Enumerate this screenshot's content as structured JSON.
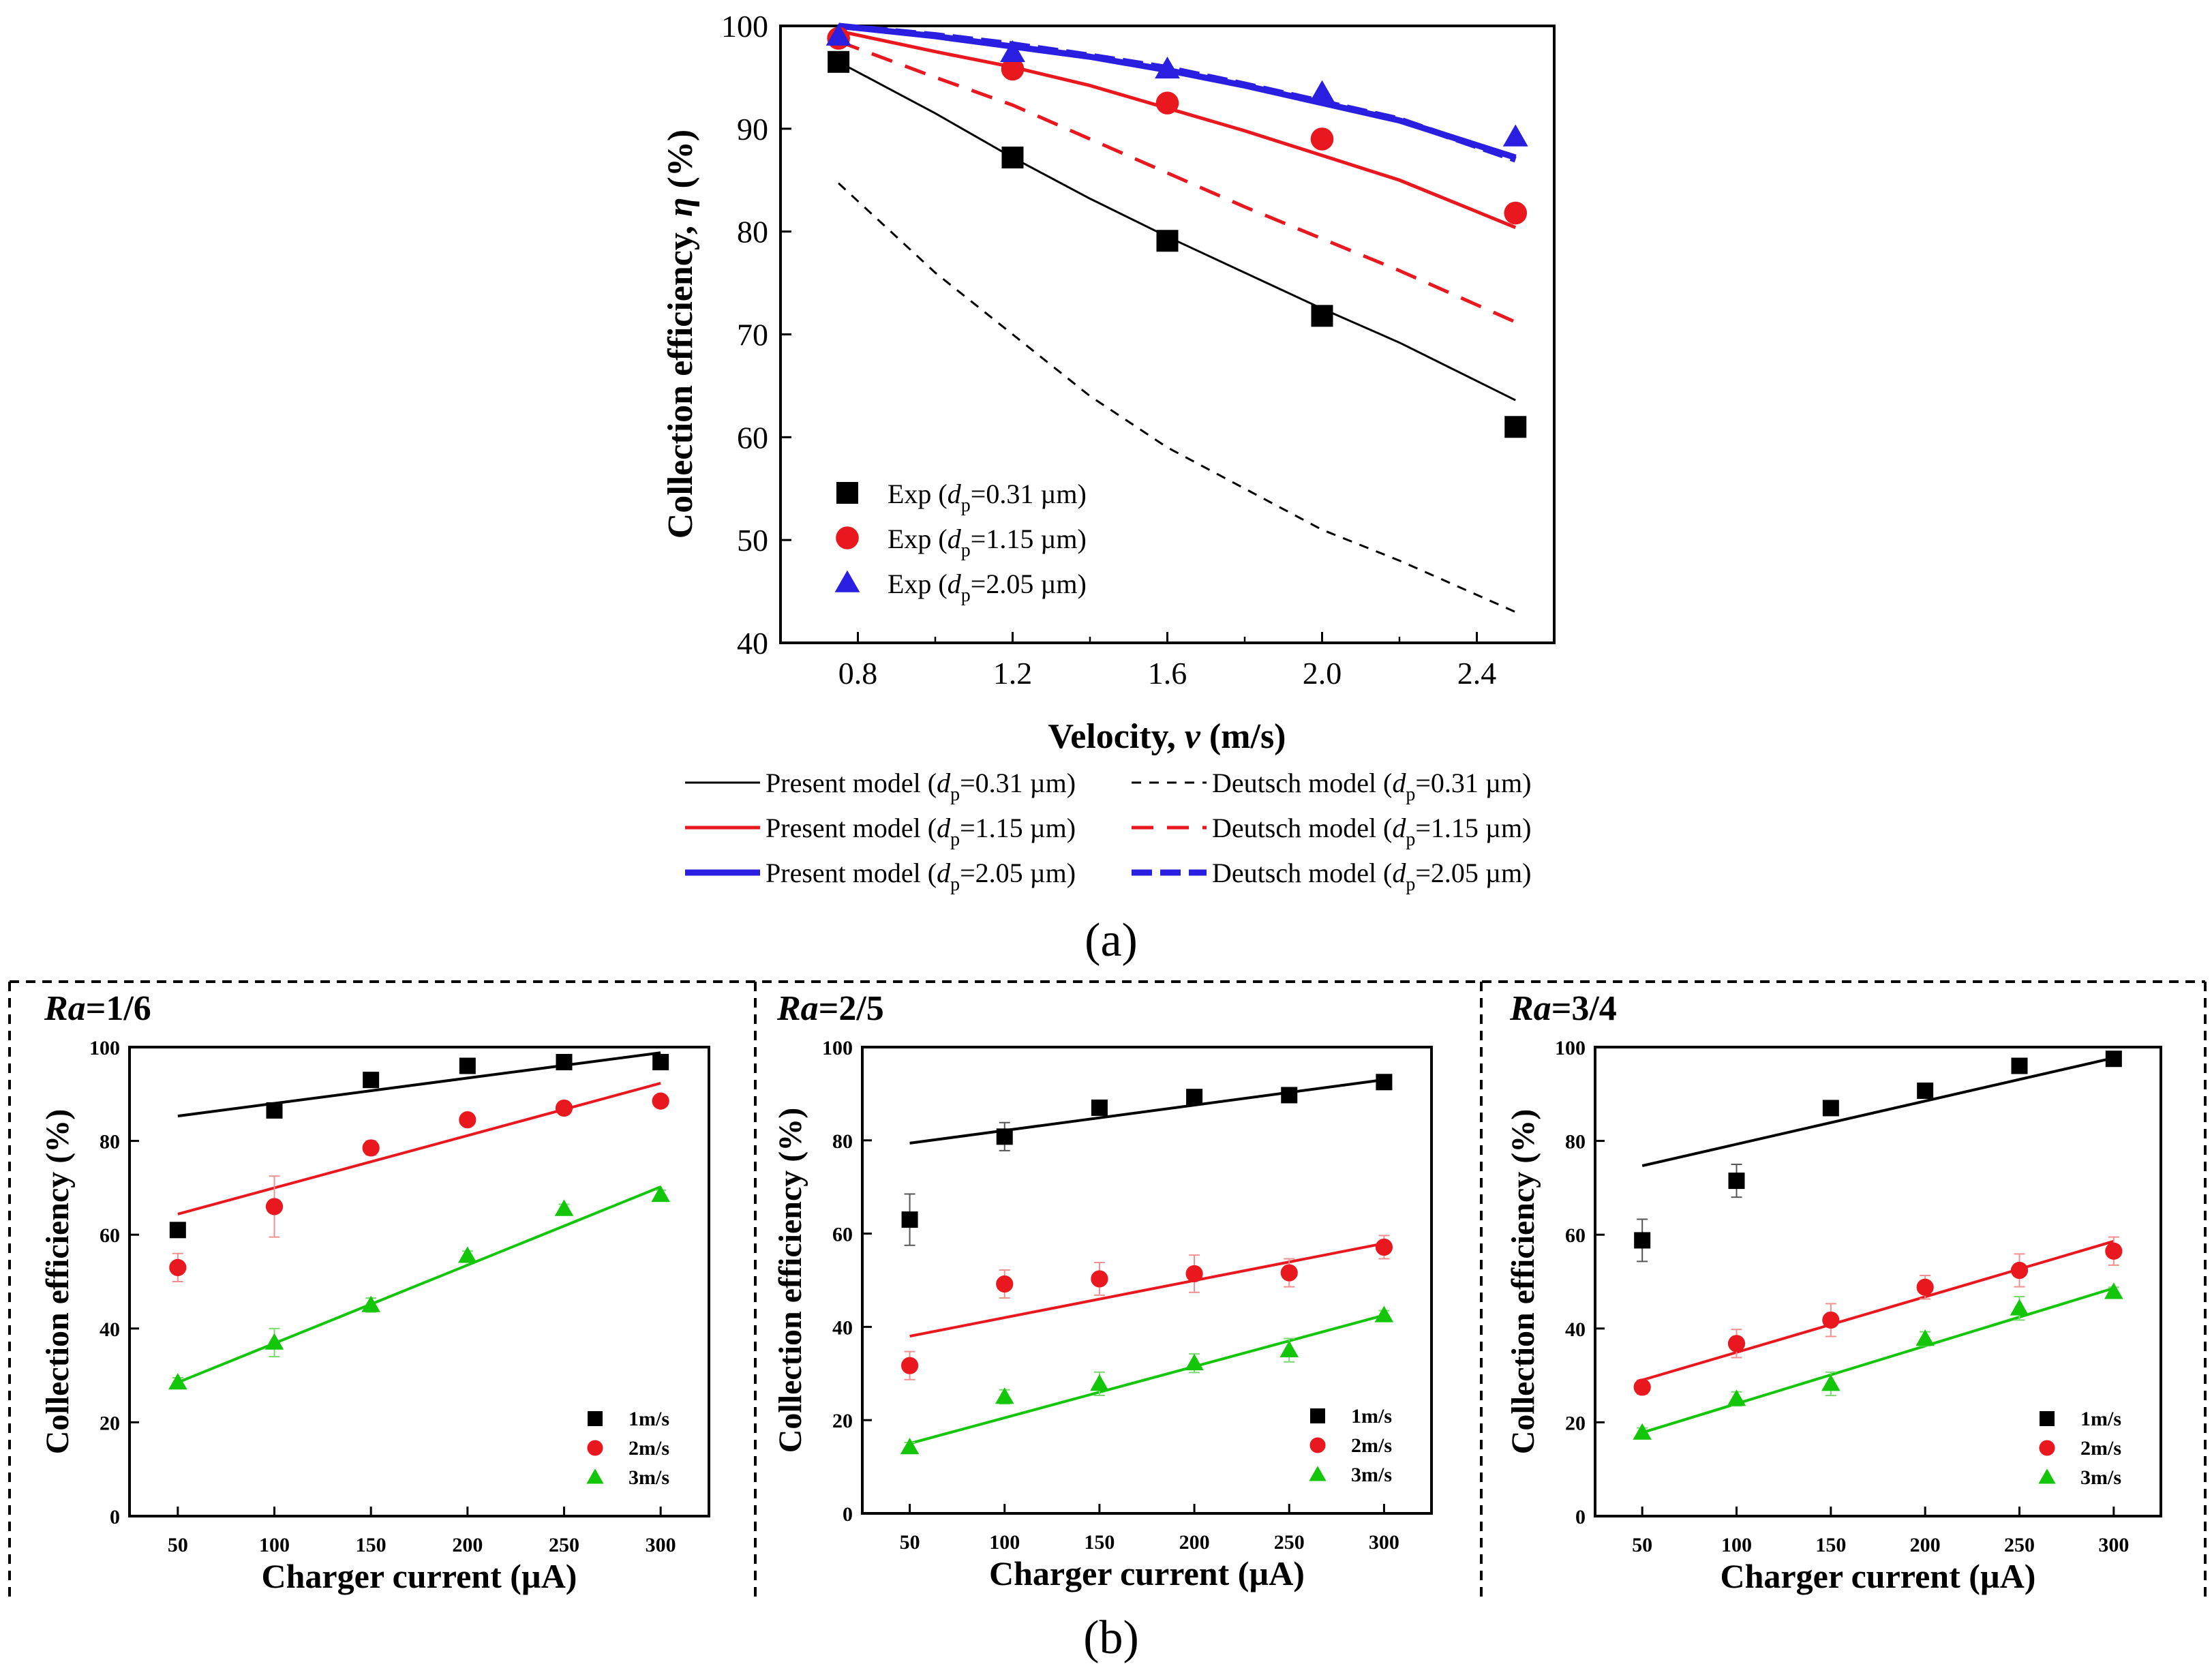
{
  "panel_a": {
    "label": "(a)",
    "chart_data": {
      "type": "scatter",
      "title": "",
      "xlabel": "Velocity, v (m/s)",
      "ylabel": "Collection efficiency, η (%)",
      "xlim": [
        0.6,
        2.6
      ],
      "ylim": [
        40,
        100
      ],
      "xticks": [
        0.8,
        1.2,
        1.6,
        2.0,
        2.4
      ],
      "xtick_labels": [
        "0.8",
        "1.2",
        "1.6",
        "2.0",
        "2.4"
      ],
      "yticks": [
        40,
        50,
        60,
        70,
        80,
        90,
        100
      ],
      "ytick_labels": [
        "40",
        "50",
        "60",
        "70",
        "80",
        "90",
        "100"
      ],
      "series": [
        {
          "name": "Exp (dp=0.31 µm)",
          "label_text": "Exp (",
          "dp_sym": "d",
          "dp_sub": "p",
          "dp_val": "=0.31 µm)",
          "kind": "points",
          "marker": "square",
          "color": "#000000",
          "x": [
            0.75,
            1.2,
            1.6,
            2.0,
            2.5
          ],
          "y": [
            96.5,
            87.2,
            79.1,
            71.8,
            61.0
          ]
        },
        {
          "name": "Exp (dp=1.15 µm)",
          "label_text": "Exp (",
          "dp_sym": "d",
          "dp_sub": "p",
          "dp_val": "=1.15 µm)",
          "kind": "points",
          "marker": "circle",
          "color": "#e8181e",
          "x": [
            0.75,
            1.2,
            1.6,
            2.0,
            2.5
          ],
          "y": [
            98.8,
            95.8,
            92.5,
            89.0,
            81.8
          ]
        },
        {
          "name": "Exp (dp=2.05 µm)",
          "label_text": "Exp (",
          "dp_sym": "d",
          "dp_sub": "p",
          "dp_val": "=2.05 µm)",
          "kind": "points",
          "marker": "triangle",
          "color": "#2a1fe0",
          "x": [
            0.75,
            1.2,
            1.6,
            2.0,
            2.5
          ],
          "y": [
            99.0,
            97.4,
            95.8,
            93.5,
            89.2
          ]
        },
        {
          "name": "Present model (dp=0.31 µm)",
          "label_text": "Present model (",
          "dp_sym": "d",
          "dp_sub": "p",
          "dp_val": "=0.31 µm)",
          "kind": "line",
          "dash": "solid",
          "width": 3,
          "color": "#000000",
          "x": [
            0.75,
            1.0,
            1.2,
            1.4,
            1.6,
            1.8,
            2.0,
            2.2,
            2.5
          ],
          "y": [
            96.5,
            91.5,
            87.2,
            83.2,
            79.5,
            76.0,
            72.5,
            69.2,
            63.6
          ]
        },
        {
          "name": "Deutsch model (dp=0.31 µm)",
          "label_text": "Deutsch model (",
          "dp_sym": "d",
          "dp_sub": "p",
          "dp_val": "=0.31 µm)",
          "kind": "line",
          "dash": "dash-short",
          "width": 3,
          "color": "#000000",
          "x": [
            0.75,
            1.0,
            1.2,
            1.4,
            1.6,
            1.8,
            2.0,
            2.2,
            2.5
          ],
          "y": [
            84.7,
            76.0,
            70.0,
            64.0,
            59.0,
            55.0,
            51.0,
            48.0,
            43.0
          ]
        },
        {
          "name": "Present model (dp=1.15 µm)",
          "label_text": "Present model (",
          "dp_sym": "d",
          "dp_sub": "p",
          "dp_val": "=1.15 µm)",
          "kind": "line",
          "dash": "solid",
          "width": 5,
          "color": "#e8181e",
          "x": [
            0.75,
            1.0,
            1.2,
            1.4,
            1.6,
            1.8,
            2.0,
            2.2,
            2.5
          ],
          "y": [
            99.5,
            97.5,
            96.0,
            94.2,
            92.0,
            89.8,
            87.4,
            85.0,
            80.4
          ]
        },
        {
          "name": "Deutsch model (dp=1.15 µm)",
          "label_text": "Deutsch model (",
          "dp_sym": "d",
          "dp_sub": "p",
          "dp_val": "=1.15 µm)",
          "kind": "line",
          "dash": "dash-long",
          "width": 5,
          "color": "#e8181e",
          "x": [
            0.75,
            1.0,
            1.2,
            1.4,
            1.6,
            1.8,
            2.0,
            2.2,
            2.5
          ],
          "y": [
            98.5,
            95.0,
            92.3,
            89.0,
            85.7,
            82.4,
            79.3,
            76.2,
            71.2
          ]
        },
        {
          "name": "Present model (dp=2.05 µm)",
          "label_text": "Present model (",
          "dp_sym": "d",
          "dp_sub": "p",
          "dp_val": "=2.05 µm)",
          "kind": "line",
          "dash": "solid",
          "width": 9,
          "color": "#2a1fe0",
          "x": [
            0.75,
            1.0,
            1.2,
            1.4,
            1.6,
            1.8,
            2.0,
            2.2,
            2.5
          ],
          "y": [
            100.0,
            99.0,
            98.0,
            97.0,
            95.7,
            94.2,
            92.5,
            90.8,
            87.2
          ]
        },
        {
          "name": "Deutsch model (dp=2.05 µm)",
          "label_text": "Deutsch model (",
          "dp_sym": "d",
          "dp_sub": "p",
          "dp_val": "=2.05 µm)",
          "kind": "line",
          "dash": "dash-blue",
          "width": 9,
          "color": "#2a1fe0",
          "x": [
            0.75,
            1.0,
            1.2,
            1.4,
            1.6,
            1.8,
            2.0,
            2.2,
            2.5
          ],
          "y": [
            100.0,
            99.1,
            98.2,
            97.1,
            95.9,
            94.3,
            92.6,
            90.9,
            87.0
          ]
        }
      ]
    }
  },
  "panel_b": {
    "label": "(b)",
    "chart_data": [
      {
        "type": "scatter",
        "title_italic": "Ra",
        "title_rest": "=1/6",
        "xlabel": "Charger current (µA)",
        "ylabel": "Collection efficiency (%)",
        "xlim": [
          25,
          325
        ],
        "ylim": [
          0,
          100
        ],
        "xticks": [
          50,
          100,
          150,
          200,
          250,
          300
        ],
        "xtick_labels": [
          "50",
          "100",
          "150",
          "200",
          "250",
          "300"
        ],
        "yticks": [
          0,
          20,
          40,
          60,
          80,
          100
        ],
        "ytick_labels": [
          "0",
          "20",
          "40",
          "60",
          "80",
          "100"
        ],
        "x": [
          50,
          100,
          150,
          200,
          250,
          300
        ],
        "series": [
          {
            "name": "1m/s",
            "marker": "square",
            "color": "#000000",
            "values": [
              61,
              86.5,
              93,
              96,
              96.8,
              96.8
            ],
            "err": [
              1.5,
              1.5,
              1,
              1,
              1,
              1
            ],
            "fit": [
              85.3,
              98.8
            ]
          },
          {
            "name": "2m/s",
            "marker": "circle",
            "color": "#e8181e",
            "values": [
              53,
              66,
              78.5,
              84.5,
              87,
              88.5
            ],
            "err": [
              3,
              6.5,
              1.5,
              1,
              1,
              1
            ],
            "fit": [
              64.4,
              92.3
            ]
          },
          {
            "name": "3m/s",
            "marker": "triangle",
            "color": "#14c60a",
            "values": [
              28.5,
              37,
              45,
              55.5,
              65.5,
              68.5
            ],
            "err": [
              1,
              3,
              1.5,
              1,
              1,
              1
            ],
            "fit": [
              28.5,
              70.2
            ]
          }
        ]
      },
      {
        "type": "scatter",
        "title_italic": "Ra",
        "title_rest": "=2/5",
        "xlabel": "Charger current (µA)",
        "ylabel": "Collection efficiency (%)",
        "xlim": [
          25,
          325
        ],
        "ylim": [
          0,
          100
        ],
        "xticks": [
          50,
          100,
          150,
          200,
          250,
          300
        ],
        "xtick_labels": [
          "50",
          "100",
          "150",
          "200",
          "250",
          "300"
        ],
        "yticks": [
          0,
          20,
          40,
          60,
          80,
          100
        ],
        "ytick_labels": [
          "0",
          "20",
          "40",
          "60",
          "80",
          "100"
        ],
        "x": [
          50,
          100,
          150,
          200,
          250,
          300
        ],
        "series": [
          {
            "name": "1m/s",
            "marker": "square",
            "color": "#000000",
            "values": [
              63,
              80.8,
              87,
              89.3,
              89.7,
              92.5
            ],
            "err": [
              5.5,
              3,
              1.5,
              1,
              1,
              1
            ],
            "fit": [
              79.4,
              93.0
            ]
          },
          {
            "name": "2m/s",
            "marker": "circle",
            "color": "#e8181e",
            "values": [
              31.7,
              49.2,
              50.3,
              51.4,
              51.6,
              57.1
            ],
            "err": [
              3,
              3,
              3.5,
              4,
              3,
              2.5
            ],
            "fit": [
              38.0,
              57.9
            ]
          },
          {
            "name": "3m/s",
            "marker": "triangle",
            "color": "#14c60a",
            "values": [
              14.2,
              25,
              27.8,
              32.2,
              35,
              42.5
            ],
            "err": [
              1,
              1.5,
              2.5,
              2,
              2.5,
              1
            ],
            "fit": [
              15.0,
              42.5
            ]
          }
        ]
      },
      {
        "type": "scatter",
        "title_italic": "Ra",
        "title_rest": "=3/4",
        "xlabel": "Charger current (µA)",
        "ylabel": "Collection efficiency (%)",
        "xlim": [
          25,
          325
        ],
        "ylim": [
          0,
          100
        ],
        "xticks": [
          50,
          100,
          150,
          200,
          250,
          300
        ],
        "xtick_labels": [
          "50",
          "100",
          "150",
          "200",
          "250",
          "300"
        ],
        "yticks": [
          0,
          20,
          40,
          60,
          80,
          100
        ],
        "ytick_labels": [
          "0",
          "20",
          "40",
          "60",
          "80",
          "100"
        ],
        "x": [
          50,
          100,
          150,
          200,
          250,
          300
        ],
        "series": [
          {
            "name": "1m/s",
            "marker": "square",
            "color": "#000000",
            "values": [
              58.8,
              71.5,
              87,
              90.7,
              96,
              97.5
            ],
            "err": [
              4.5,
              3.5,
              1.5,
              1.5,
              1,
              1
            ],
            "fit": [
              74.7,
              97.7
            ]
          },
          {
            "name": "2m/s",
            "marker": "circle",
            "color": "#e8181e",
            "values": [
              27.5,
              36.8,
              41.8,
              48.8,
              52.4,
              56.5
            ],
            "err": [
              1.5,
              3,
              3.5,
              2.5,
              3.5,
              3
            ],
            "fit": [
              29.0,
              58.6
            ]
          },
          {
            "name": "3m/s",
            "marker": "triangle",
            "color": "#14c60a",
            "values": [
              17.8,
              25,
              28.2,
              37.8,
              44.3,
              47.8
            ],
            "err": [
              1,
              1.5,
              2.5,
              1.5,
              2.5,
              1
            ],
            "fit": [
              17.8,
              48.6
            ]
          }
        ]
      }
    ]
  }
}
